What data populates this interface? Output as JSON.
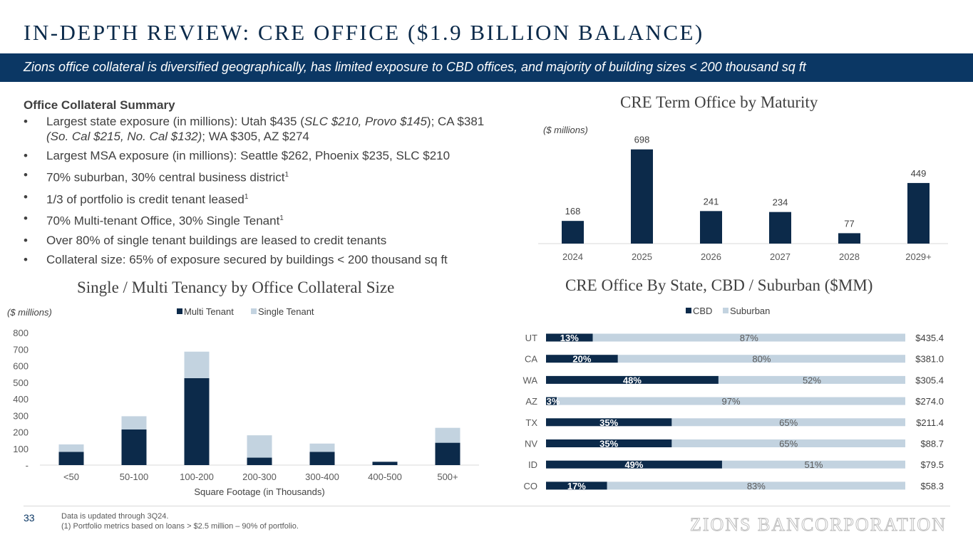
{
  "page": {
    "title": "IN-DEPTH REVIEW: CRE OFFICE ($1.9 BILLION BALANCE)",
    "subtitle": "Zions office collateral is diversified geographically, has limited exposure to CBD offices, and majority of building sizes < 200 thousand sq ft",
    "page_number": "33",
    "footnote_1": "Data is updated through 3Q24.",
    "footnote_2": "(1) Portfolio metrics based on loans > $2.5 million – 90% of portfolio.",
    "logo_text": "ZIONS BANCORPORATION"
  },
  "summary": {
    "heading": "Office Collateral Summary",
    "bullet_char": "•",
    "b1_a": "Largest state exposure (in millions): Utah $435 (",
    "b1_b": "SLC $210, Provo $145",
    "b1_c": "); CA $381 ",
    "b1_d": "(So. Cal $215, No. Cal $132)",
    "b1_e": "; WA $305, AZ $274",
    "b2": "Largest MSA exposure (in millions): Seattle $262, Phoenix $235, SLC $210",
    "b3": "70% suburban, 30% central business district",
    "b4": "1/3 of portfolio is credit tenant leased",
    "b5": "70% Multi-tenant Office, 30% Single Tenant",
    "b6": "Over 80% of single tenant buildings are leased to credit tenants",
    "b7": "Collateral size: 65% of exposure secured by buildings < 200 thousand sq ft",
    "sup": "1"
  },
  "colors": {
    "navy": "#0c2a4a",
    "light": "#c3d3e0",
    "banner": "#0b3764"
  },
  "chart_data": [
    {
      "id": "maturity",
      "type": "bar",
      "title": "CRE Term Office by Maturity",
      "unit_label": "($ millions)",
      "categories": [
        "2024",
        "2025",
        "2026",
        "2027",
        "2028",
        "2029+"
      ],
      "values": [
        168,
        698,
        241,
        234,
        77,
        449
      ],
      "ylim": [
        0,
        760
      ]
    },
    {
      "id": "tenancy",
      "type": "bar",
      "stacked": true,
      "title": "Single / Multi Tenancy by Office Collateral Size",
      "unit_label": "($ millions)",
      "xlabel": "Square Footage (in Thousands)",
      "categories": [
        "<50",
        "50-100",
        "100-200",
        "200-300",
        "300-400",
        "400-500",
        "500+"
      ],
      "series": [
        {
          "name": "Multi Tenant",
          "values": [
            80,
            215,
            525,
            45,
            80,
            20,
            135
          ]
        },
        {
          "name": "Single Tenant",
          "values": [
            45,
            80,
            160,
            135,
            50,
            0,
            90
          ]
        }
      ],
      "yticks": [
        0,
        100,
        200,
        300,
        400,
        500,
        600,
        700,
        800
      ],
      "ytick_labels": [
        "-",
        "100",
        "200",
        "300",
        "400",
        "500",
        "600",
        "700",
        "800"
      ],
      "ylim": [
        0,
        800
      ]
    },
    {
      "id": "state",
      "type": "bar",
      "orientation": "horizontal",
      "stacked": true,
      "title": "CRE Office By State, CBD / Suburban ($MM)",
      "series_names": [
        "CBD",
        "Suburban"
      ],
      "categories": [
        "UT",
        "CA",
        "WA",
        "AZ",
        "TX",
        "NV",
        "ID",
        "CO"
      ],
      "cbd_pct": [
        13,
        20,
        48,
        3,
        35,
        35,
        49,
        17
      ],
      "suburban_pct": [
        87,
        80,
        52,
        97,
        65,
        65,
        51,
        83
      ],
      "cbd_labels": [
        "13%",
        "20%",
        "48%",
        "3%",
        "35%",
        "35%",
        "49%",
        "17%"
      ],
      "suburban_labels": [
        "87%",
        "80%",
        "52%",
        "97%",
        "65%",
        "65%",
        "51%",
        "83%"
      ],
      "totals": [
        435.4,
        381.0,
        305.4,
        274.0,
        211.4,
        88.7,
        79.5,
        58.3
      ],
      "total_labels": [
        "$435.4",
        "$381.0",
        "$305.4",
        "$274.0",
        "$211.4",
        "$88.7",
        "$79.5",
        "$58.3"
      ]
    }
  ]
}
